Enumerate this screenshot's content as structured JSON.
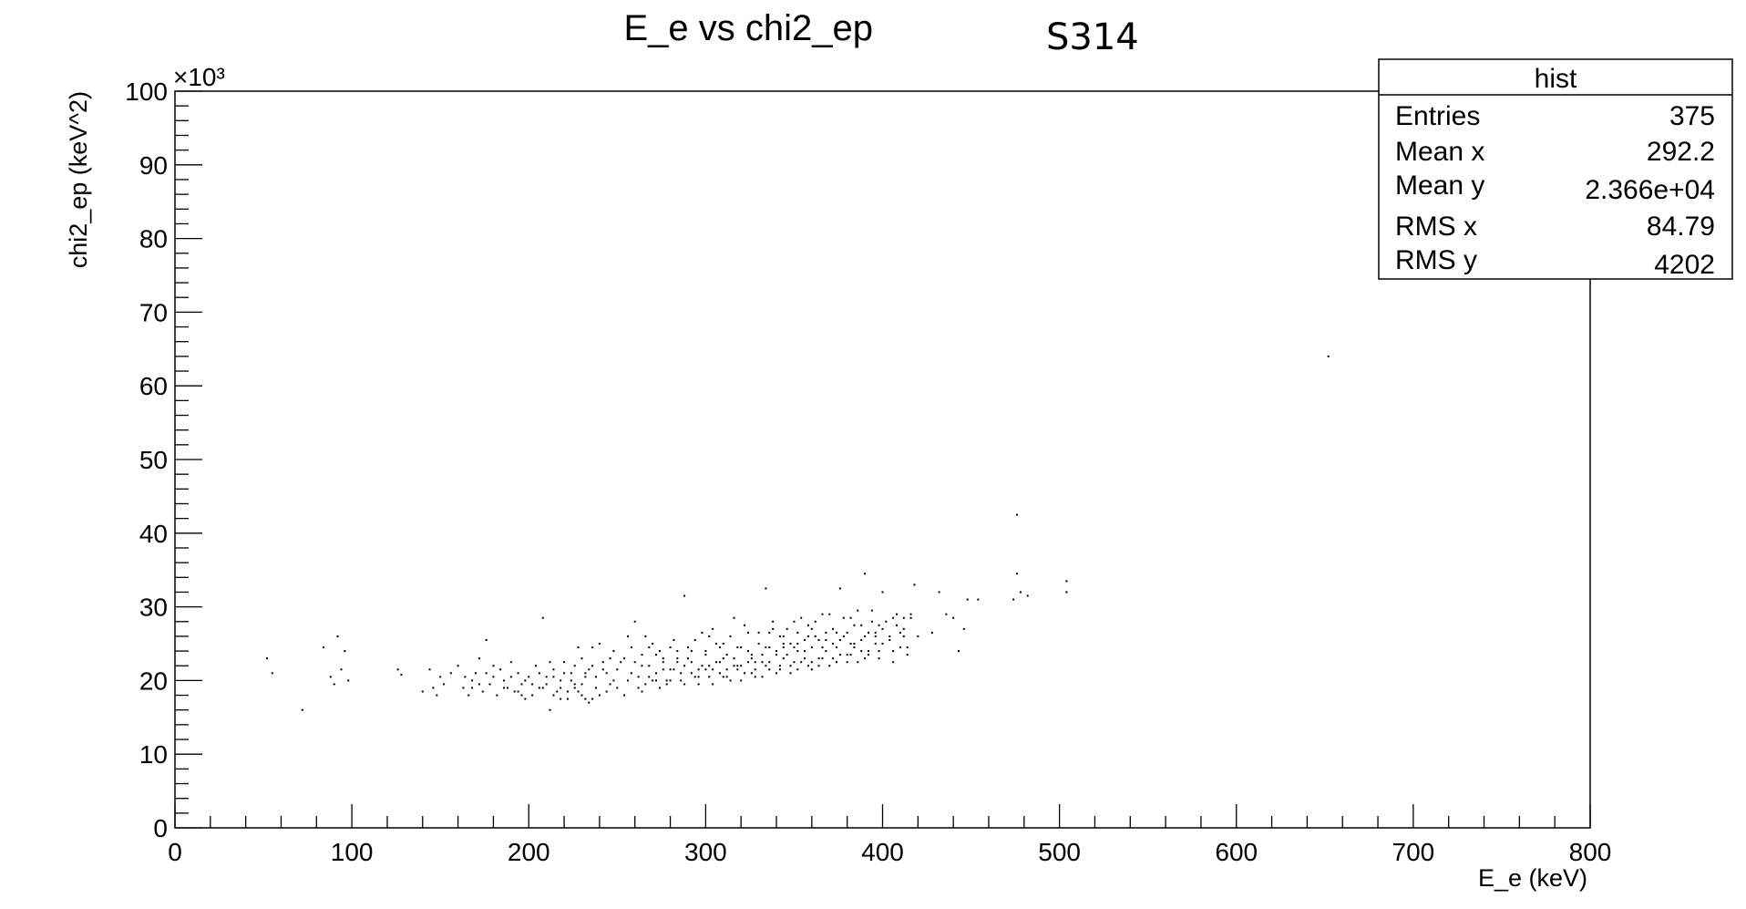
{
  "chart_data": {
    "type": "scatter",
    "title": "E_e vs chi2_ep",
    "run_tag": "S314",
    "xlabel": "E_e (keV)",
    "ylabel": "chi2_ep (keV^2)",
    "y_multiplier": "×10³",
    "xlim": [
      0,
      800
    ],
    "ylim": [
      0,
      100000
    ],
    "x_ticks": [
      0,
      100,
      200,
      300,
      400,
      500,
      600,
      700,
      800
    ],
    "y_ticks": [
      0,
      10,
      20,
      30,
      40,
      50,
      60,
      70,
      80,
      90,
      100
    ],
    "grid": false,
    "stats_box": {
      "title": "hist",
      "rows": [
        {
          "label": "Entries",
          "value": "375"
        },
        {
          "label": "Mean x",
          "value": "292.2"
        },
        {
          "label": "Mean y",
          "value": "2.366e+04"
        },
        {
          "label": "RMS x",
          "value": "84.79"
        },
        {
          "label": "RMS y",
          "value": "4202"
        }
      ]
    },
    "points": [
      [
        52,
        23000
      ],
      [
        55,
        21000
      ],
      [
        72,
        16000
      ],
      [
        84,
        24500
      ],
      [
        88,
        20500
      ],
      [
        90,
        19500
      ],
      [
        92,
        26000
      ],
      [
        94,
        21500
      ],
      [
        96,
        24000
      ],
      [
        98,
        20000
      ],
      [
        126,
        21500
      ],
      [
        128,
        20800
      ],
      [
        140,
        18500
      ],
      [
        144,
        21500
      ],
      [
        146,
        19000
      ],
      [
        148,
        18000
      ],
      [
        150,
        20500
      ],
      [
        152,
        19500
      ],
      [
        156,
        21000
      ],
      [
        160,
        22000
      ],
      [
        163,
        19000
      ],
      [
        166,
        18000
      ],
      [
        168,
        20000
      ],
      [
        170,
        21000
      ],
      [
        172,
        23000
      ],
      [
        174,
        18500
      ],
      [
        176,
        25500
      ],
      [
        178,
        19500
      ],
      [
        180,
        22000
      ],
      [
        182,
        18000
      ],
      [
        184,
        21500
      ],
      [
        186,
        20000
      ],
      [
        188,
        19000
      ],
      [
        190,
        22500
      ],
      [
        192,
        18500
      ],
      [
        194,
        21000
      ],
      [
        196,
        19500
      ],
      [
        198,
        17500
      ],
      [
        200,
        20500
      ],
      [
        202,
        18000
      ],
      [
        204,
        22000
      ],
      [
        206,
        19000
      ],
      [
        208,
        28500
      ],
      [
        210,
        20500
      ],
      [
        212,
        16000
      ],
      [
        214,
        21500
      ],
      [
        216,
        18500
      ],
      [
        218,
        20000
      ],
      [
        220,
        22500
      ],
      [
        222,
        17500
      ],
      [
        224,
        21000
      ],
      [
        226,
        19500
      ],
      [
        228,
        24500
      ],
      [
        230,
        18000
      ],
      [
        232,
        20500
      ],
      [
        234,
        17000
      ],
      [
        236,
        22000
      ],
      [
        238,
        19000
      ],
      [
        240,
        25000
      ],
      [
        242,
        21500
      ],
      [
        244,
        18500
      ],
      [
        246,
        23000
      ],
      [
        248,
        20000
      ],
      [
        250,
        19000
      ],
      [
        252,
        22500
      ],
      [
        254,
        18000
      ],
      [
        256,
        26000
      ],
      [
        258,
        21000
      ],
      [
        260,
        28000
      ],
      [
        262,
        20500
      ],
      [
        264,
        23500
      ],
      [
        266,
        19500
      ],
      [
        268,
        22000
      ],
      [
        270,
        25000
      ],
      [
        272,
        21000
      ],
      [
        274,
        19000
      ],
      [
        276,
        23000
      ],
      [
        278,
        20000
      ],
      [
        280,
        24500
      ],
      [
        282,
        21500
      ],
      [
        284,
        22500
      ],
      [
        286,
        20000
      ],
      [
        288,
        31500
      ],
      [
        290,
        23000
      ],
      [
        292,
        21000
      ],
      [
        294,
        25500
      ],
      [
        296,
        19500
      ],
      [
        298,
        22000
      ],
      [
        300,
        24000
      ],
      [
        302,
        20500
      ],
      [
        304,
        27000
      ],
      [
        306,
        22500
      ],
      [
        308,
        21000
      ],
      [
        310,
        25000
      ],
      [
        312,
        23500
      ],
      [
        314,
        20000
      ],
      [
        316,
        28500
      ],
      [
        318,
        22000
      ],
      [
        320,
        24500
      ],
      [
        322,
        21000
      ],
      [
        324,
        26500
      ],
      [
        326,
        23000
      ],
      [
        328,
        20500
      ],
      [
        330,
        25000
      ],
      [
        332,
        22500
      ],
      [
        334,
        32500
      ],
      [
        336,
        21500
      ],
      [
        338,
        27000
      ],
      [
        340,
        24000
      ],
      [
        342,
        22000
      ],
      [
        344,
        26000
      ],
      [
        346,
        23500
      ],
      [
        348,
        21000
      ],
      [
        350,
        28000
      ],
      [
        352,
        25000
      ],
      [
        354,
        22500
      ],
      [
        356,
        24000
      ],
      [
        358,
        27500
      ],
      [
        360,
        21500
      ],
      [
        362,
        26000
      ],
      [
        364,
        23000
      ],
      [
        366,
        29000
      ],
      [
        368,
        25500
      ],
      [
        370,
        22000
      ],
      [
        372,
        27000
      ],
      [
        374,
        24500
      ],
      [
        376,
        32500
      ],
      [
        378,
        26000
      ],
      [
        380,
        23500
      ],
      [
        382,
        28500
      ],
      [
        384,
        25000
      ],
      [
        386,
        22500
      ],
      [
        388,
        27500
      ],
      [
        390,
        34500
      ],
      [
        392,
        24000
      ],
      [
        394,
        29500
      ],
      [
        396,
        26500
      ],
      [
        398,
        23000
      ],
      [
        400,
        32000
      ],
      [
        402,
        28000
      ],
      [
        404,
        25500
      ],
      [
        406,
        22500
      ],
      [
        408,
        29000
      ],
      [
        410,
        24500
      ],
      [
        412,
        27000
      ],
      [
        414,
        23500
      ],
      [
        416,
        28500
      ],
      [
        418,
        33000
      ],
      [
        420,
        26000
      ],
      [
        428,
        26500
      ],
      [
        432,
        32000
      ],
      [
        436,
        29000
      ],
      [
        440,
        28500
      ],
      [
        443,
        24000
      ],
      [
        446,
        27000
      ],
      [
        448,
        31000
      ],
      [
        454,
        31000
      ],
      [
        474,
        31000
      ],
      [
        476,
        34500
      ],
      [
        476,
        42500
      ],
      [
        478,
        32000
      ],
      [
        482,
        31500
      ],
      [
        504,
        33500
      ],
      [
        504,
        32000
      ],
      [
        652,
        64000
      ],
      [
        264,
        22000
      ],
      [
        268,
        20500
      ],
      [
        272,
        23500
      ],
      [
        276,
        22500
      ],
      [
        280,
        21500
      ],
      [
        284,
        23000
      ],
      [
        288,
        22000
      ],
      [
        292,
        22500
      ],
      [
        296,
        21500
      ],
      [
        300,
        23500
      ],
      [
        304,
        21500
      ],
      [
        308,
        22500
      ],
      [
        312,
        21500
      ],
      [
        316,
        23000
      ],
      [
        320,
        22000
      ],
      [
        324,
        24000
      ],
      [
        328,
        22500
      ],
      [
        332,
        23500
      ],
      [
        336,
        24500
      ],
      [
        340,
        23500
      ],
      [
        344,
        24500
      ],
      [
        348,
        25000
      ],
      [
        352,
        24000
      ],
      [
        356,
        25500
      ],
      [
        360,
        24500
      ],
      [
        364,
        25500
      ],
      [
        368,
        24000
      ],
      [
        372,
        25000
      ],
      [
        376,
        25500
      ],
      [
        380,
        26500
      ],
      [
        384,
        24500
      ],
      [
        388,
        25500
      ],
      [
        392,
        26500
      ],
      [
        396,
        25000
      ],
      [
        400,
        27000
      ],
      [
        404,
        26000
      ],
      [
        408,
        27500
      ],
      [
        412,
        28500
      ],
      [
        262,
        19000
      ],
      [
        270,
        20000
      ],
      [
        278,
        19500
      ],
      [
        286,
        21000
      ],
      [
        294,
        20500
      ],
      [
        302,
        22000
      ],
      [
        310,
        20500
      ],
      [
        318,
        21500
      ],
      [
        326,
        21000
      ],
      [
        334,
        22000
      ],
      [
        342,
        21500
      ],
      [
        350,
        22500
      ],
      [
        358,
        22000
      ],
      [
        366,
        23000
      ],
      [
        374,
        22500
      ],
      [
        382,
        23500
      ],
      [
        390,
        23000
      ],
      [
        398,
        24000
      ],
      [
        250,
        21500
      ],
      [
        246,
        19500
      ],
      [
        238,
        20500
      ],
      [
        234,
        21500
      ],
      [
        228,
        18500
      ],
      [
        224,
        20000
      ],
      [
        218,
        19000
      ],
      [
        214,
        20500
      ],
      [
        210,
        19500
      ],
      [
        206,
        21000
      ],
      [
        202,
        19500
      ],
      [
        198,
        20000
      ],
      [
        194,
        18500
      ],
      [
        190,
        20500
      ],
      [
        186,
        19000
      ],
      [
        180,
        20500
      ],
      [
        176,
        21000
      ],
      [
        172,
        19500
      ],
      [
        168,
        19000
      ],
      [
        164,
        20500
      ],
      [
        258,
        24500
      ],
      [
        266,
        26000
      ],
      [
        274,
        24000
      ],
      [
        282,
        25500
      ],
      [
        290,
        24500
      ],
      [
        298,
        26500
      ],
      [
        306,
        25000
      ],
      [
        314,
        26000
      ],
      [
        322,
        27500
      ],
      [
        330,
        26500
      ],
      [
        338,
        28000
      ],
      [
        346,
        27000
      ],
      [
        354,
        28500
      ],
      [
        362,
        28000
      ],
      [
        370,
        29000
      ],
      [
        378,
        28500
      ],
      [
        386,
        29500
      ],
      [
        394,
        28000
      ],
      [
        256,
        20000
      ],
      [
        260,
        22500
      ],
      [
        264,
        18500
      ],
      [
        268,
        24500
      ],
      [
        272,
        20000
      ],
      [
        276,
        21500
      ],
      [
        280,
        20000
      ],
      [
        284,
        24000
      ],
      [
        288,
        19500
      ],
      [
        292,
        24000
      ],
      [
        296,
        20500
      ],
      [
        300,
        21500
      ],
      [
        304,
        19500
      ],
      [
        308,
        24500
      ],
      [
        312,
        20500
      ],
      [
        316,
        22000
      ],
      [
        320,
        20000
      ],
      [
        324,
        22500
      ],
      [
        328,
        21500
      ],
      [
        332,
        20500
      ],
      [
        336,
        22500
      ],
      [
        340,
        21000
      ],
      [
        344,
        23000
      ],
      [
        348,
        22000
      ],
      [
        352,
        21500
      ],
      [
        356,
        23000
      ],
      [
        360,
        22500
      ],
      [
        364,
        22000
      ],
      [
        368,
        26500
      ],
      [
        372,
        23000
      ],
      [
        376,
        23500
      ],
      [
        380,
        22500
      ],
      [
        384,
        27500
      ],
      [
        388,
        24000
      ],
      [
        392,
        23500
      ],
      [
        396,
        26000
      ],
      [
        400,
        25000
      ],
      [
        406,
        24000
      ],
      [
        410,
        26500
      ],
      [
        414,
        24500
      ],
      [
        230,
        23000
      ],
      [
        236,
        24500
      ],
      [
        242,
        22500
      ],
      [
        248,
        24000
      ],
      [
        254,
        23000
      ],
      [
        226,
        22000
      ],
      [
        232,
        21000
      ],
      [
        220,
        21000
      ],
      [
        244,
        21000
      ],
      [
        212,
        22500
      ],
      [
        240,
        18000
      ],
      [
        236,
        17500
      ],
      [
        232,
        17500
      ],
      [
        230,
        19500
      ],
      [
        226,
        19000
      ],
      [
        222,
        18500
      ],
      [
        218,
        17500
      ],
      [
        214,
        18000
      ],
      [
        208,
        19000
      ],
      [
        196,
        18000
      ],
      [
        302,
        26000
      ],
      [
        310,
        23000
      ],
      [
        318,
        24500
      ],
      [
        326,
        23500
      ],
      [
        334,
        24500
      ],
      [
        342,
        26000
      ],
      [
        350,
        24500
      ],
      [
        358,
        26000
      ],
      [
        366,
        24500
      ],
      [
        374,
        26500
      ],
      [
        382,
        25000
      ],
      [
        390,
        26000
      ],
      [
        398,
        27500
      ],
      [
        406,
        28500
      ],
      [
        412,
        26000
      ],
      [
        416,
        29000
      ],
      [
        360,
        27000
      ],
      [
        352,
        26500
      ],
      [
        344,
        25000
      ],
      [
        336,
        26500
      ]
    ]
  }
}
